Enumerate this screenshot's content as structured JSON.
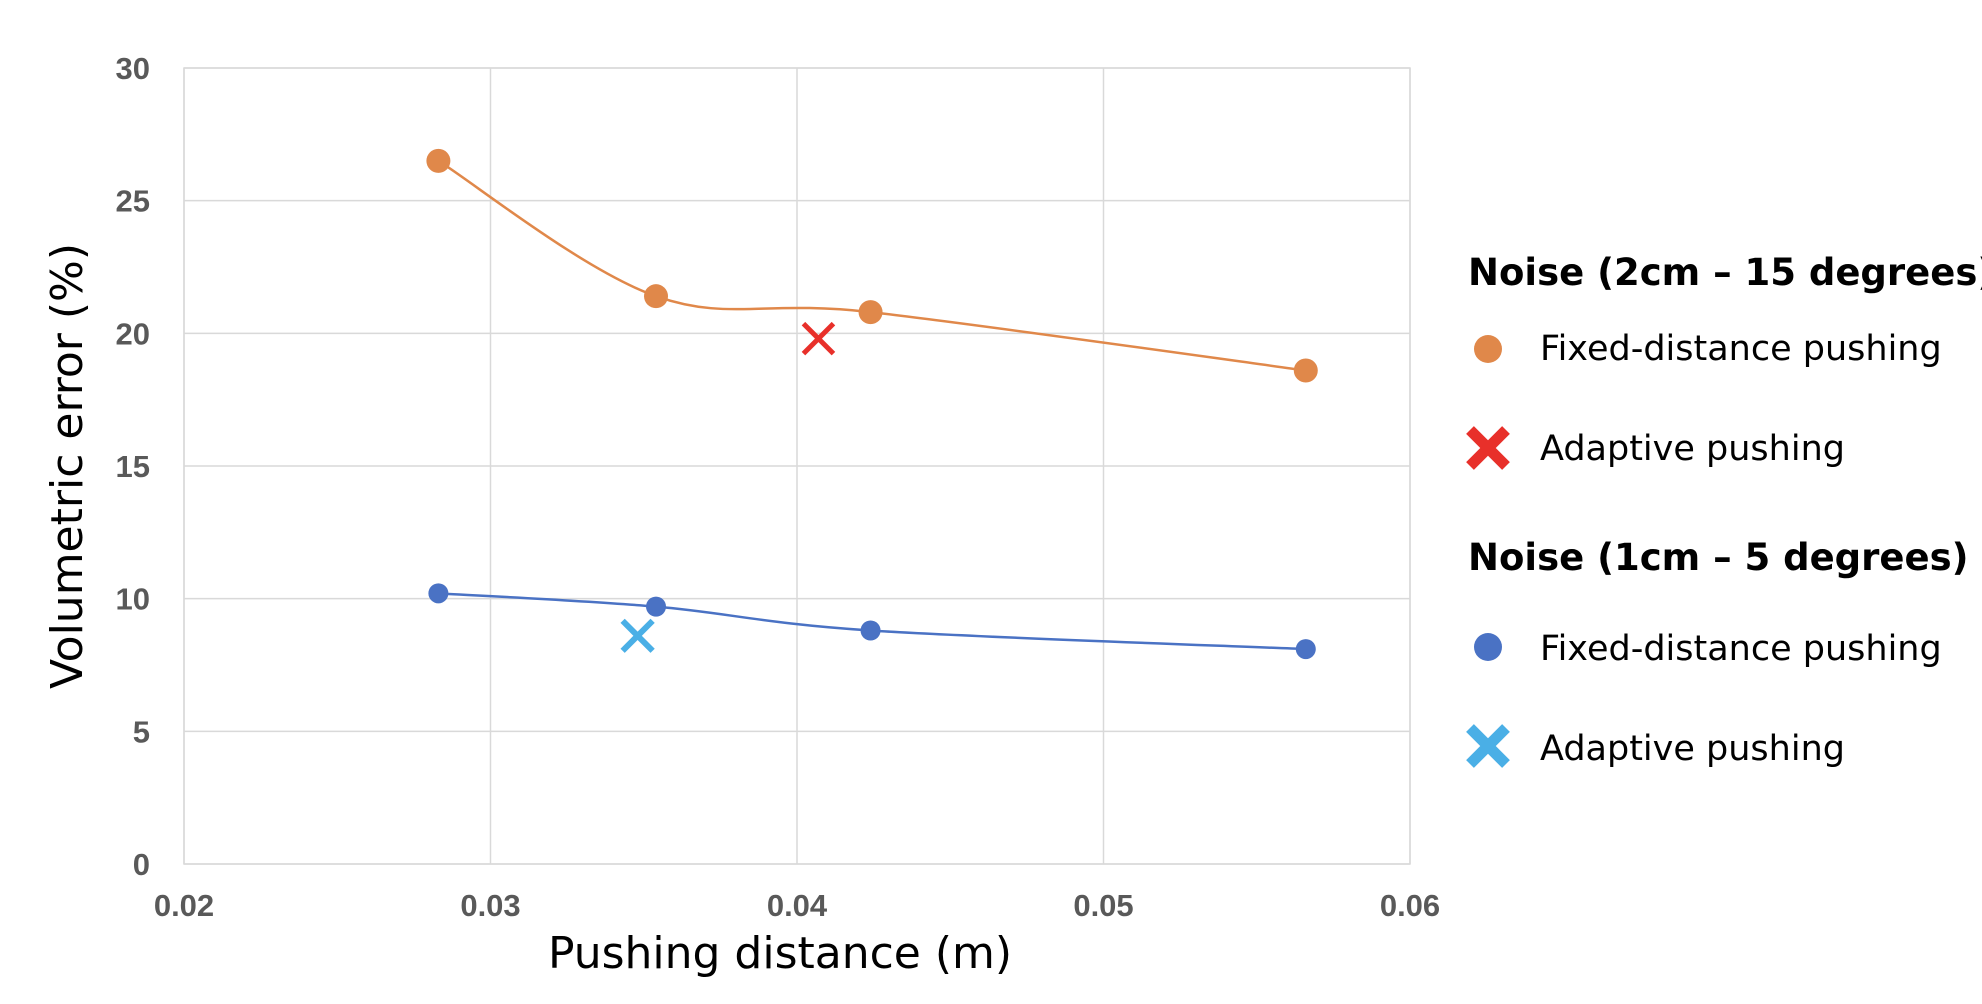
{
  "chart_data": {
    "type": "scatter",
    "title": "",
    "xlabel": "Pushing distance (m)",
    "ylabel": "Volumetric error (%)",
    "xlim": [
      0.02,
      0.06
    ],
    "ylim": [
      0,
      30
    ],
    "xticks": [
      "0.02",
      "0.03",
      "0.04",
      "0.05",
      "0.06"
    ],
    "yticks": [
      "0",
      "5",
      "10",
      "15",
      "20",
      "25",
      "30"
    ],
    "grid": true,
    "legend_position": "right",
    "groups": [
      {
        "title": "Noise (2cm – 15 degrees)",
        "series": [
          {
            "name": "Fixed-distance pushing",
            "marker": "circle",
            "color": "#E0884A",
            "line": "smooth",
            "x": [
              0.0283,
              0.0354,
              0.0424,
              0.0566
            ],
            "y": [
              26.5,
              21.4,
              20.8,
              18.6
            ]
          },
          {
            "name": "Adaptive pushing",
            "marker": "x",
            "color": "#E8302A",
            "line": "none",
            "x": [
              0.0407
            ],
            "y": [
              19.8
            ]
          }
        ]
      },
      {
        "title": "Noise (1cm – 5 degrees)",
        "series": [
          {
            "name": "Fixed-distance pushing",
            "marker": "circle",
            "color": "#4A72C4",
            "line": "smooth",
            "x": [
              0.0283,
              0.0354,
              0.0424,
              0.0566
            ],
            "y": [
              10.2,
              9.7,
              8.8,
              8.1
            ]
          },
          {
            "name": "Adaptive pushing",
            "marker": "x",
            "color": "#4AAFE6",
            "line": "none",
            "x": [
              0.0348
            ],
            "y": [
              8.6
            ]
          }
        ]
      }
    ]
  }
}
